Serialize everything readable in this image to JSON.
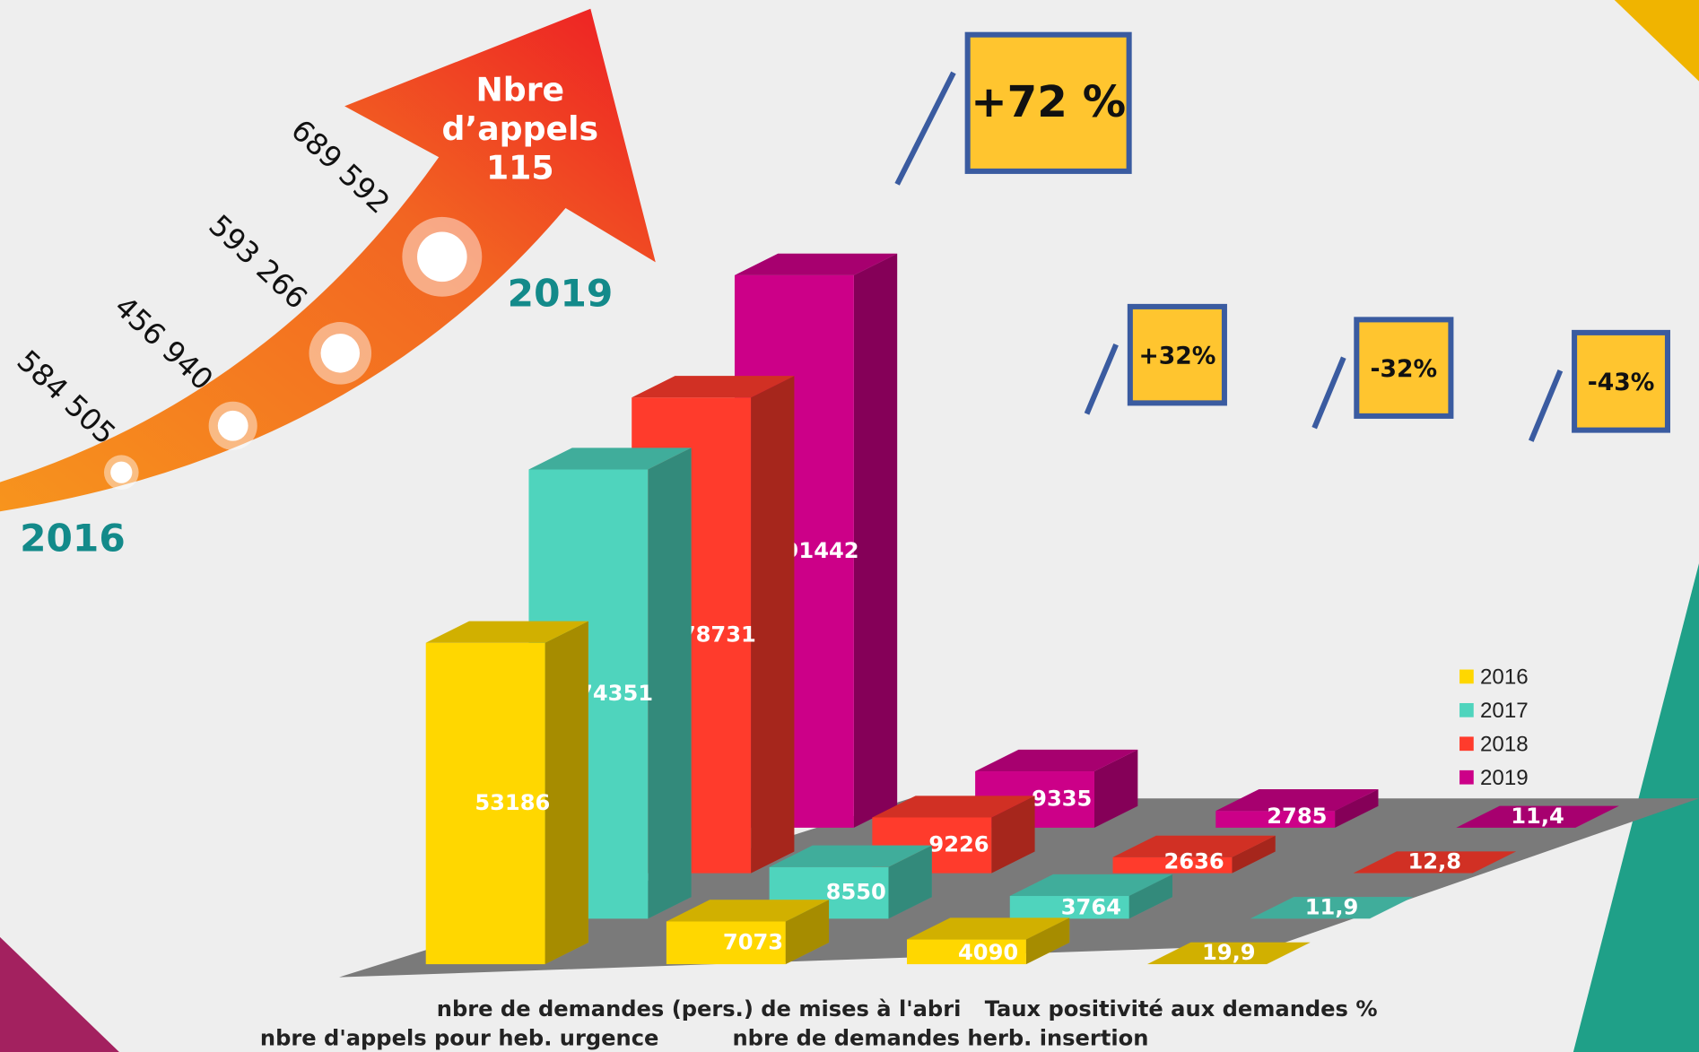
{
  "chart_data": {
    "type": "bar3d",
    "categories": [
      "nbre d'appels pour heb. urgence",
      "nbre de demandes (pers.) de mises à l'abri",
      "nbre de demandes herb. insertion",
      "Taux positivité aux demandes %"
    ],
    "series": [
      {
        "name": "2016",
        "color": "#ffd700",
        "values": [
          53186,
          7073,
          4090,
          19.9
        ],
        "value_labels": [
          "53186",
          "7073",
          "4090",
          "19,9"
        ]
      },
      {
        "name": "2017",
        "color": "#4fd4bd",
        "values": [
          74351,
          8550,
          3764,
          11.9
        ],
        "value_labels": [
          "74351",
          "8550",
          "3764",
          "11,9"
        ]
      },
      {
        "name": "2018",
        "color": "#ff3b2c",
        "values": [
          78731,
          9226,
          2636,
          12.8
        ],
        "value_labels": [
          "78731",
          "9226",
          "2636",
          "12,8"
        ]
      },
      {
        "name": "2019",
        "color": "#cc0088",
        "values": [
          91442,
          9335,
          2785,
          11.4
        ],
        "value_labels": [
          "91442",
          "9335",
          "2785",
          "11,4"
        ]
      }
    ],
    "legend": "right"
  },
  "calls_115": {
    "title": [
      "Nbre",
      "d’appels",
      "115"
    ],
    "points": [
      {
        "value": 584505,
        "label": "584 505"
      },
      {
        "value": 456940,
        "label": "456 940"
      },
      {
        "value": 593266,
        "label": "593 266"
      },
      {
        "value": 689592,
        "label": "689 592"
      }
    ],
    "start_label": "2016",
    "end_label": "2019"
  },
  "changes": [
    {
      "value": 72,
      "label": "+72 %"
    },
    {
      "value": 32,
      "label": "+32%"
    },
    {
      "value": -32,
      "label": "-32%"
    },
    {
      "value": -43,
      "label": "-43%"
    }
  ]
}
